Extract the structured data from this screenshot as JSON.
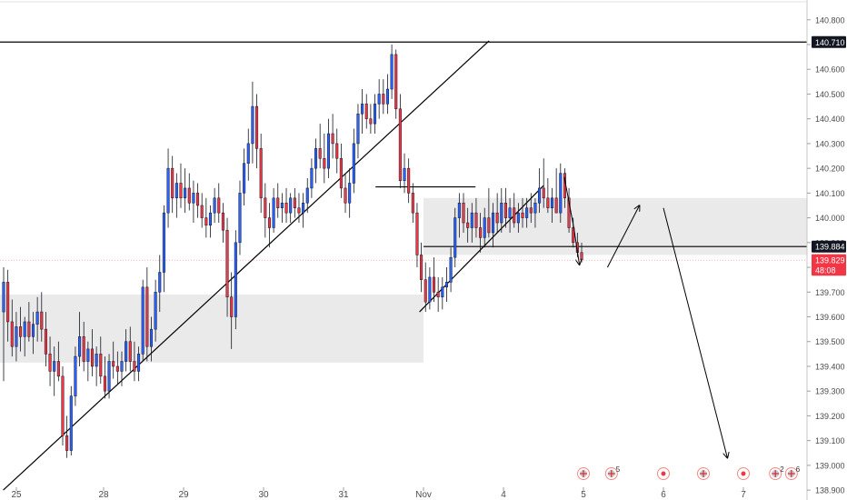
{
  "chart_data": {
    "type": "candlestick",
    "y_axis": {
      "ticks": [
        "140.800",
        "140.700",
        "140.600",
        "140.500",
        "140.400",
        "140.300",
        "140.200",
        "140.100",
        "140.000",
        "139.900",
        "139.800",
        "139.700",
        "139.600",
        "139.500",
        "139.400",
        "139.300",
        "139.200",
        "139.100",
        "139.000",
        "138.900"
      ],
      "range": [
        138.86,
        140.88
      ]
    },
    "x_axis": {
      "ticks": [
        {
          "label": "25",
          "index": 0
        },
        {
          "label": "28",
          "index": 1
        },
        {
          "label": "29",
          "index": 2
        },
        {
          "label": "30",
          "index": 3
        },
        {
          "label": "31",
          "index": 4
        },
        {
          "label": "Nov",
          "index": 5
        },
        {
          "label": "4",
          "index": 6
        },
        {
          "label": "5",
          "index": 7
        },
        {
          "label": "6",
          "index": 8
        },
        {
          "label": "7",
          "index": 9
        }
      ]
    },
    "price_badges": [
      {
        "label": "140.710",
        "value": 140.71,
        "color": "#131722"
      },
      {
        "label": "139.884",
        "value": 139.884,
        "color": "#131722"
      },
      {
        "label": "139.829",
        "value": 139.829,
        "color": "#f23645"
      },
      {
        "label": "48:08",
        "value": 139.79,
        "color": "#f23645"
      }
    ],
    "horizontal_lines": [
      {
        "value": 140.71,
        "from": 0,
        "to": 9.8
      },
      {
        "value": 139.884,
        "from": 5.0,
        "to": 9.8
      },
      {
        "value": 140.125,
        "from": 4.4,
        "to": 5.65
      }
    ],
    "zones": [
      {
        "from": 139.415,
        "to": 139.69,
        "x_from": 0,
        "x_to": 5.0
      },
      {
        "from": 139.85,
        "to": 140.08,
        "x_from": 5.0,
        "x_to": 9.8
      }
    ],
    "trendlines": [
      {
        "x1": -0.15,
        "y1": 138.9,
        "x2": 5.82,
        "y2": 140.715
      },
      {
        "x1": 4.95,
        "y1": 139.62,
        "x2": 6.5,
        "y2": 140.13
      }
    ],
    "projection_arrows": [
      [
        [
          6.76,
          140.165
        ],
        [
          6.88,
          139.96
        ],
        [
          6.95,
          139.81
        ]
      ],
      [
        [
          7.3,
          139.8
        ],
        [
          7.7,
          140.05
        ]
      ],
      [
        [
          8.0,
          140.04
        ],
        [
          8.8,
          139.03
        ]
      ]
    ],
    "event_markers": [
      {
        "x": 7.0,
        "kind": "flag",
        "count": ""
      },
      {
        "x": 7.35,
        "kind": "flag",
        "count": "5"
      },
      {
        "x": 8.0,
        "kind": "dot",
        "count": ""
      },
      {
        "x": 8.5,
        "kind": "flag",
        "count": ""
      },
      {
        "x": 9.0,
        "kind": "dot",
        "count": ""
      },
      {
        "x": 9.4,
        "kind": "flag",
        "count": "2"
      },
      {
        "x": 9.6,
        "kind": "flag",
        "count": "6"
      }
    ],
    "colors": {
      "up": "#2962ff",
      "down": "#f23645",
      "wick": "#131722",
      "zone": "#e6e6e6",
      "line": "#000000"
    },
    "candles": [
      {
        "o": 139.62,
        "h": 139.8,
        "l": 139.34,
        "c": 139.74
      },
      {
        "o": 139.74,
        "h": 139.79,
        "l": 139.5,
        "c": 139.58
      },
      {
        "o": 139.58,
        "h": 139.67,
        "l": 139.44,
        "c": 139.48
      },
      {
        "o": 139.48,
        "h": 139.62,
        "l": 139.42,
        "c": 139.56
      },
      {
        "o": 139.56,
        "h": 139.64,
        "l": 139.46,
        "c": 139.52
      },
      {
        "o": 139.52,
        "h": 139.6,
        "l": 139.44,
        "c": 139.58
      },
      {
        "o": 139.58,
        "h": 139.66,
        "l": 139.5,
        "c": 139.52
      },
      {
        "o": 139.52,
        "h": 139.62,
        "l": 139.45,
        "c": 139.57
      },
      {
        "o": 139.57,
        "h": 139.68,
        "l": 139.5,
        "c": 139.62
      },
      {
        "o": 139.62,
        "h": 139.7,
        "l": 139.5,
        "c": 139.55
      },
      {
        "o": 139.55,
        "h": 139.62,
        "l": 139.4,
        "c": 139.45
      },
      {
        "o": 139.45,
        "h": 139.52,
        "l": 139.32,
        "c": 139.38
      },
      {
        "o": 139.38,
        "h": 139.48,
        "l": 139.28,
        "c": 139.42
      },
      {
        "o": 139.42,
        "h": 139.5,
        "l": 139.34,
        "c": 139.36
      },
      {
        "o": 139.36,
        "h": 139.4,
        "l": 139.08,
        "c": 139.12
      },
      {
        "o": 139.12,
        "h": 139.2,
        "l": 139.03,
        "c": 139.06
      },
      {
        "o": 139.06,
        "h": 139.32,
        "l": 139.04,
        "c": 139.28
      },
      {
        "o": 139.28,
        "h": 139.48,
        "l": 139.24,
        "c": 139.44
      },
      {
        "o": 139.44,
        "h": 139.62,
        "l": 139.4,
        "c": 139.52
      },
      {
        "o": 139.52,
        "h": 139.58,
        "l": 139.38,
        "c": 139.42
      },
      {
        "o": 139.42,
        "h": 139.5,
        "l": 139.34,
        "c": 139.47
      },
      {
        "o": 139.47,
        "h": 139.55,
        "l": 139.36,
        "c": 139.4
      },
      {
        "o": 139.4,
        "h": 139.48,
        "l": 139.32,
        "c": 139.45
      },
      {
        "o": 139.45,
        "h": 139.52,
        "l": 139.33,
        "c": 139.36
      },
      {
        "o": 139.36,
        "h": 139.44,
        "l": 139.27,
        "c": 139.3
      },
      {
        "o": 139.3,
        "h": 139.45,
        "l": 139.27,
        "c": 139.42
      },
      {
        "o": 139.42,
        "h": 139.5,
        "l": 139.35,
        "c": 139.4
      },
      {
        "o": 139.4,
        "h": 139.46,
        "l": 139.33,
        "c": 139.38
      },
      {
        "o": 139.38,
        "h": 139.46,
        "l": 139.32,
        "c": 139.42
      },
      {
        "o": 139.42,
        "h": 139.55,
        "l": 139.38,
        "c": 139.5
      },
      {
        "o": 139.5,
        "h": 139.56,
        "l": 139.38,
        "c": 139.42
      },
      {
        "o": 139.42,
        "h": 139.5,
        "l": 139.34,
        "c": 139.38
      },
      {
        "o": 139.38,
        "h": 139.48,
        "l": 139.34,
        "c": 139.45
      },
      {
        "o": 139.45,
        "h": 139.75,
        "l": 139.42,
        "c": 139.72
      },
      {
        "o": 139.72,
        "h": 139.8,
        "l": 139.42,
        "c": 139.48
      },
      {
        "o": 139.48,
        "h": 139.6,
        "l": 139.42,
        "c": 139.55
      },
      {
        "o": 139.55,
        "h": 139.75,
        "l": 139.5,
        "c": 139.7
      },
      {
        "o": 139.7,
        "h": 139.85,
        "l": 139.62,
        "c": 139.78
      },
      {
        "o": 139.78,
        "h": 140.05,
        "l": 139.7,
        "c": 140.02
      },
      {
        "o": 140.02,
        "h": 140.28,
        "l": 139.96,
        "c": 140.2
      },
      {
        "o": 140.2,
        "h": 140.25,
        "l": 140.02,
        "c": 140.08
      },
      {
        "o": 140.08,
        "h": 140.18,
        "l": 140.0,
        "c": 140.14
      },
      {
        "o": 140.14,
        "h": 140.22,
        "l": 140.04,
        "c": 140.08
      },
      {
        "o": 140.08,
        "h": 140.2,
        "l": 140.02,
        "c": 140.12
      },
      {
        "o": 140.12,
        "h": 140.18,
        "l": 140.03,
        "c": 140.06
      },
      {
        "o": 140.06,
        "h": 140.15,
        "l": 139.98,
        "c": 140.1
      },
      {
        "o": 140.1,
        "h": 140.14,
        "l": 140.0,
        "c": 140.05
      },
      {
        "o": 140.05,
        "h": 140.1,
        "l": 139.96,
        "c": 140.0
      },
      {
        "o": 140.0,
        "h": 140.08,
        "l": 139.92,
        "c": 139.97
      },
      {
        "o": 139.97,
        "h": 140.05,
        "l": 139.92,
        "c": 140.02
      },
      {
        "o": 140.02,
        "h": 140.12,
        "l": 139.98,
        "c": 140.08
      },
      {
        "o": 140.08,
        "h": 140.14,
        "l": 139.98,
        "c": 140.02
      },
      {
        "o": 140.02,
        "h": 140.06,
        "l": 139.9,
        "c": 139.95
      },
      {
        "o": 139.95,
        "h": 140.0,
        "l": 139.6,
        "c": 139.68
      },
      {
        "o": 139.68,
        "h": 139.78,
        "l": 139.47,
        "c": 139.6
      },
      {
        "o": 139.6,
        "h": 139.95,
        "l": 139.55,
        "c": 139.9
      },
      {
        "o": 139.9,
        "h": 140.15,
        "l": 139.85,
        "c": 140.1
      },
      {
        "o": 140.1,
        "h": 140.28,
        "l": 140.05,
        "c": 140.22
      },
      {
        "o": 140.22,
        "h": 140.36,
        "l": 140.15,
        "c": 140.3
      },
      {
        "o": 140.3,
        "h": 140.55,
        "l": 140.22,
        "c": 140.45
      },
      {
        "o": 140.45,
        "h": 140.5,
        "l": 140.2,
        "c": 140.28
      },
      {
        "o": 140.28,
        "h": 140.34,
        "l": 140.02,
        "c": 140.08
      },
      {
        "o": 140.08,
        "h": 140.14,
        "l": 139.92,
        "c": 140.0
      },
      {
        "o": 140.0,
        "h": 140.06,
        "l": 139.88,
        "c": 139.96
      },
      {
        "o": 139.96,
        "h": 140.12,
        "l": 139.94,
        "c": 140.08
      },
      {
        "o": 140.08,
        "h": 140.14,
        "l": 140.0,
        "c": 140.04
      },
      {
        "o": 140.04,
        "h": 140.1,
        "l": 139.98,
        "c": 140.06
      },
      {
        "o": 140.06,
        "h": 140.12,
        "l": 139.98,
        "c": 140.02
      },
      {
        "o": 140.02,
        "h": 140.1,
        "l": 139.98,
        "c": 140.08
      },
      {
        "o": 140.08,
        "h": 140.12,
        "l": 140.0,
        "c": 140.04
      },
      {
        "o": 140.04,
        "h": 140.1,
        "l": 139.98,
        "c": 140.02
      },
      {
        "o": 140.02,
        "h": 140.1,
        "l": 139.96,
        "c": 140.06
      },
      {
        "o": 140.06,
        "h": 140.16,
        "l": 140.02,
        "c": 140.12
      },
      {
        "o": 140.12,
        "h": 140.24,
        "l": 140.08,
        "c": 140.2
      },
      {
        "o": 140.2,
        "h": 140.32,
        "l": 140.14,
        "c": 140.28
      },
      {
        "o": 140.28,
        "h": 140.38,
        "l": 140.2,
        "c": 140.24
      },
      {
        "o": 140.24,
        "h": 140.34,
        "l": 140.14,
        "c": 140.2
      },
      {
        "o": 140.2,
        "h": 140.4,
        "l": 140.16,
        "c": 140.34
      },
      {
        "o": 140.34,
        "h": 140.42,
        "l": 140.24,
        "c": 140.3
      },
      {
        "o": 140.3,
        "h": 140.36,
        "l": 140.18,
        "c": 140.24
      },
      {
        "o": 140.24,
        "h": 140.3,
        "l": 140.08,
        "c": 140.12
      },
      {
        "o": 140.12,
        "h": 140.18,
        "l": 140.02,
        "c": 140.06
      },
      {
        "o": 140.06,
        "h": 140.2,
        "l": 140.0,
        "c": 140.14
      },
      {
        "o": 140.14,
        "h": 140.36,
        "l": 140.1,
        "c": 140.3
      },
      {
        "o": 140.3,
        "h": 140.46,
        "l": 140.24,
        "c": 140.42
      },
      {
        "o": 140.42,
        "h": 140.52,
        "l": 140.34,
        "c": 140.46
      },
      {
        "o": 140.46,
        "h": 140.5,
        "l": 140.36,
        "c": 140.4
      },
      {
        "o": 140.4,
        "h": 140.46,
        "l": 140.34,
        "c": 140.38
      },
      {
        "o": 140.38,
        "h": 140.5,
        "l": 140.34,
        "c": 140.46
      },
      {
        "o": 140.46,
        "h": 140.56,
        "l": 140.4,
        "c": 140.5
      },
      {
        "o": 140.5,
        "h": 140.56,
        "l": 140.42,
        "c": 140.46
      },
      {
        "o": 140.46,
        "h": 140.58,
        "l": 140.42,
        "c": 140.52
      },
      {
        "o": 140.52,
        "h": 140.7,
        "l": 140.48,
        "c": 140.66
      },
      {
        "o": 140.66,
        "h": 140.68,
        "l": 140.4,
        "c": 140.44
      },
      {
        "o": 140.44,
        "h": 140.5,
        "l": 140.12,
        "c": 140.15
      },
      {
        "o": 140.15,
        "h": 140.26,
        "l": 140.1,
        "c": 140.2
      },
      {
        "o": 140.2,
        "h": 140.24,
        "l": 140.06,
        "c": 140.1
      },
      {
        "o": 140.1,
        "h": 140.14,
        "l": 139.98,
        "c": 140.02
      },
      {
        "o": 140.02,
        "h": 140.06,
        "l": 139.8,
        "c": 139.85
      },
      {
        "o": 139.85,
        "h": 139.9,
        "l": 139.7,
        "c": 139.75
      },
      {
        "o": 139.75,
        "h": 139.82,
        "l": 139.62,
        "c": 139.66
      },
      {
        "o": 139.66,
        "h": 139.8,
        "l": 139.63,
        "c": 139.76
      },
      {
        "o": 139.76,
        "h": 139.84,
        "l": 139.66,
        "c": 139.7
      },
      {
        "o": 139.7,
        "h": 139.76,
        "l": 139.62,
        "c": 139.68
      },
      {
        "o": 139.68,
        "h": 139.76,
        "l": 139.63,
        "c": 139.72
      },
      {
        "o": 139.72,
        "h": 139.8,
        "l": 139.66,
        "c": 139.74
      },
      {
        "o": 139.74,
        "h": 139.88,
        "l": 139.7,
        "c": 139.84
      },
      {
        "o": 139.84,
        "h": 140.04,
        "l": 139.8,
        "c": 140.0
      },
      {
        "o": 140.0,
        "h": 140.1,
        "l": 139.92,
        "c": 140.06
      },
      {
        "o": 140.06,
        "h": 140.1,
        "l": 139.94,
        "c": 139.98
      },
      {
        "o": 139.98,
        "h": 140.04,
        "l": 139.9,
        "c": 139.96
      },
      {
        "o": 139.96,
        "h": 140.06,
        "l": 139.9,
        "c": 140.02
      },
      {
        "o": 140.02,
        "h": 140.08,
        "l": 139.92,
        "c": 139.96
      },
      {
        "o": 139.96,
        "h": 140.02,
        "l": 139.86,
        "c": 139.92
      },
      {
        "o": 139.92,
        "h": 140.04,
        "l": 139.88,
        "c": 140.0
      },
      {
        "o": 140.0,
        "h": 140.12,
        "l": 139.92,
        "c": 139.94
      },
      {
        "o": 139.94,
        "h": 140.06,
        "l": 139.88,
        "c": 140.02
      },
      {
        "o": 140.02,
        "h": 140.1,
        "l": 139.94,
        "c": 139.98
      },
      {
        "o": 139.98,
        "h": 140.12,
        "l": 139.94,
        "c": 140.06
      },
      {
        "o": 140.06,
        "h": 140.12,
        "l": 139.96,
        "c": 140.0
      },
      {
        "o": 140.0,
        "h": 140.08,
        "l": 139.94,
        "c": 140.04
      },
      {
        "o": 140.04,
        "h": 140.1,
        "l": 139.96,
        "c": 139.98
      },
      {
        "o": 139.98,
        "h": 140.06,
        "l": 139.94,
        "c": 140.02
      },
      {
        "o": 140.02,
        "h": 140.08,
        "l": 139.96,
        "c": 140.0
      },
      {
        "o": 140.0,
        "h": 140.08,
        "l": 139.96,
        "c": 140.04
      },
      {
        "o": 140.04,
        "h": 140.1,
        "l": 139.98,
        "c": 140.02
      },
      {
        "o": 140.02,
        "h": 140.08,
        "l": 139.96,
        "c": 140.06
      },
      {
        "o": 140.06,
        "h": 140.2,
        "l": 140.02,
        "c": 140.12
      },
      {
        "o": 140.12,
        "h": 140.24,
        "l": 140.04,
        "c": 140.08
      },
      {
        "o": 140.08,
        "h": 140.16,
        "l": 140.02,
        "c": 140.04
      },
      {
        "o": 140.04,
        "h": 140.12,
        "l": 139.98,
        "c": 140.08
      },
      {
        "o": 140.08,
        "h": 140.2,
        "l": 140.02,
        "c": 140.02
      },
      {
        "o": 140.02,
        "h": 140.22,
        "l": 139.98,
        "c": 140.18
      },
      {
        "o": 140.18,
        "h": 140.2,
        "l": 140.04,
        "c": 140.08
      },
      {
        "o": 140.08,
        "h": 140.12,
        "l": 139.94,
        "c": 139.96
      },
      {
        "o": 139.96,
        "h": 140.0,
        "l": 139.88,
        "c": 139.9
      },
      {
        "o": 139.9,
        "h": 139.94,
        "l": 139.84,
        "c": 139.86
      },
      {
        "o": 139.86,
        "h": 139.9,
        "l": 139.82,
        "c": 139.83
      }
    ]
  }
}
